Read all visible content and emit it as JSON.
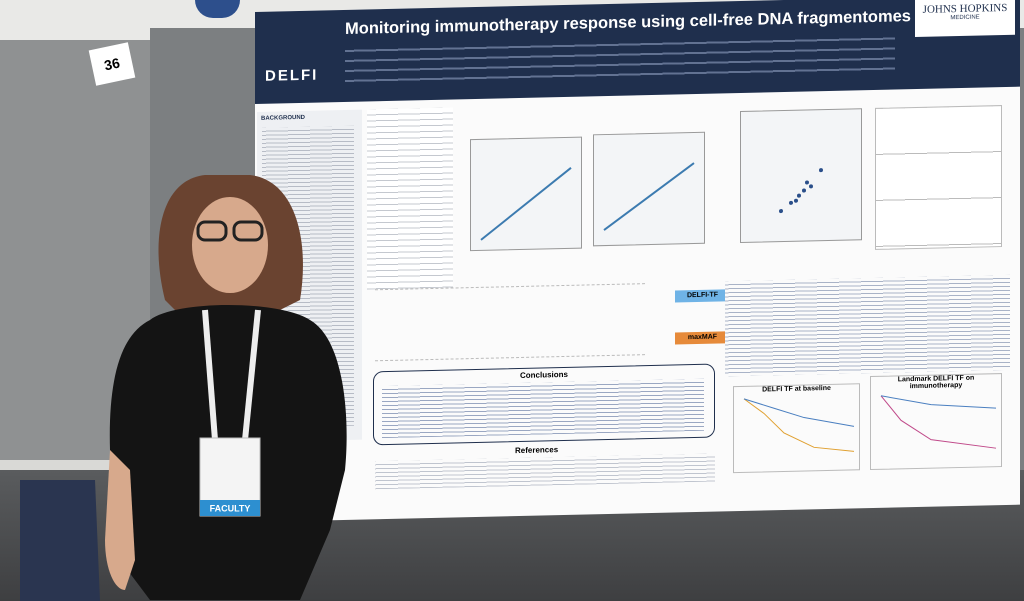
{
  "scene": {
    "board_number": "36",
    "badge": {
      "role": "FACULTY"
    },
    "poster": {
      "title": "Monitoring immunotherapy response using cell-free DNA fragmentomes",
      "logo": "DELFI",
      "institution": "JOHNS HOPKINS",
      "institution_sub": "MEDICINE",
      "background_heading": "BACKGROUND",
      "conclusions_heading": "Conclusions",
      "references_heading": "References",
      "flow_labels": [
        "DELFI-TF",
        "maxMAF"
      ],
      "km_titles": [
        "DELFI TF at baseline",
        "Landmark DELFI TF on immunotherapy"
      ]
    }
  }
}
